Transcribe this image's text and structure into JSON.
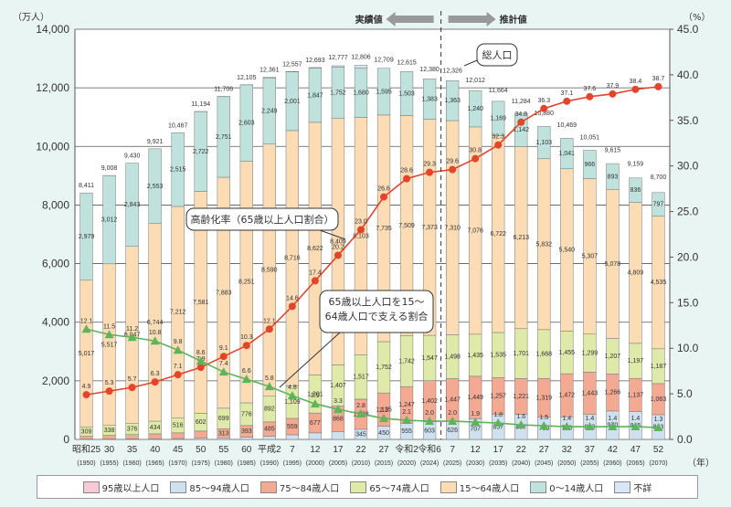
{
  "chart_data": {
    "type": "bar",
    "stacked": true,
    "title": "",
    "ylabel_left": "（万人）",
    "ylabel_right": "（%）",
    "xlabel_unit": "（年）",
    "ylim_left": [
      0,
      14000
    ],
    "yticks_left": [
      "0",
      "2,000",
      "4,000",
      "6,000",
      "8,000",
      "10,000",
      "12,000",
      "14,000"
    ],
    "ylim_right": [
      0,
      45
    ],
    "yticks_right": [
      "0.0",
      "5.0",
      "10.0",
      "15.0",
      "20.0",
      "25.0",
      "30.0",
      "35.0",
      "40.0",
      "45.0"
    ],
    "grid": true,
    "legend_position": "bottom",
    "section_labels": {
      "actual": "実績値",
      "projected": "推計値"
    },
    "callouts": {
      "total": "総人口",
      "aging_rate": "高齢化率（65歳以上人口割合）",
      "support_ratio_line1": "65歳以上人口を15～",
      "support_ratio_line2": "64歳人口で支える割合"
    },
    "categories_era": [
      "昭和25",
      "30",
      "35",
      "40",
      "45",
      "50",
      "55",
      "60",
      "平成2",
      "7",
      "12",
      "17",
      "22",
      "27",
      "令和2",
      "令和6",
      "7",
      "12",
      "17",
      "22",
      "27",
      "32",
      "37",
      "42",
      "47",
      "52"
    ],
    "categories_year": [
      "(1950)",
      "(1955)",
      "(1960)",
      "(1965)",
      "(1970)",
      "(1975)",
      "(1980)",
      "(1985)",
      "(1990)",
      "(1995)",
      "(2000)",
      "(2005)",
      "(2010)",
      "(2015)",
      "(2020)",
      "(2024)",
      "(2025)",
      "(2030)",
      "(2035)",
      "(2040)",
      "(2045)",
      "(2050)",
      "(2055)",
      "(2060)",
      "(2065)",
      "(2070)"
    ],
    "projection_start_index": 16,
    "series": [
      {
        "name": "95歳以上人口",
        "key": "p95",
        "color": "#f6cbd6",
        "values": [
          0,
          0,
          0,
          0,
          0,
          0,
          0,
          0,
          0,
          0,
          0,
          0,
          0,
          0,
          0,
          0,
          0,
          0,
          0,
          0,
          0,
          0,
          0,
          0,
          0,
          0
        ]
      },
      {
        "name": "85～94歳人口",
        "key": "p85",
        "color": "#cfe0ef",
        "values": [
          10,
          13,
          19,
          25,
          30,
          39,
          53,
          79,
          112,
          158,
          223,
          269,
          345,
          450,
          555,
          603,
          626,
          707,
          857,
          857,
          760,
          770,
          853,
          970,
          945,
          843
        ]
      },
      {
        "name": "75～84歳人口",
        "key": "p75",
        "color": "#f4a992",
        "values": [
          97,
          125,
          145,
          164,
          194,
          245,
          313,
          393,
          485,
          559,
          677,
          868,
          1028,
          1135,
          1247,
          1402,
          1447,
          1449,
          1257,
          1221,
          1319,
          1472,
          1443,
          1266,
          1137,
          1063
        ]
      },
      {
        "name": "65～74歳人口",
        "key": "p65",
        "color": "#dfe9a8",
        "values": [
          309,
          338,
          376,
          434,
          516,
          602,
          699,
          776,
          892,
          1109,
          1301,
          1407,
          1517,
          1752,
          1742,
          1547,
          1498,
          1435,
          1535,
          1701,
          1668,
          1455,
          1299,
          1207,
          1197,
          1187
        ]
      },
      {
        "name": "15～64歳人口",
        "key": "p15",
        "color": "#fbdcb4",
        "values": [
          5017,
          5517,
          6047,
          6744,
          7212,
          7581,
          7883,
          8251,
          8590,
          8716,
          8622,
          8409,
          8103,
          7735,
          7509,
          7373,
          7310,
          7076,
          6722,
          6213,
          5832,
          5540,
          5307,
          5078,
          4809,
          4535
        ]
      },
      {
        "name": "0～14歳人口",
        "key": "p0",
        "color": "#bfe2dc",
        "values": [
          2979,
          3012,
          2843,
          2553,
          2515,
          2722,
          2751,
          2603,
          2249,
          2001,
          1847,
          1752,
          1680,
          1595,
          1503,
          1383,
          1363,
          1240,
          1169,
          1142,
          1103,
          1041,
          966,
          893,
          836,
          797
        ]
      },
      {
        "name": "不詳",
        "key": "unk",
        "color": "#d9e6f5",
        "values": [
          0,
          2,
          0,
          0,
          0,
          5,
          7,
          4,
          33,
          13,
          23,
          48,
          98,
          0,
          0,
          0,
          0,
          0,
          0,
          0,
          0,
          0,
          0,
          0,
          0,
          0
        ]
      }
    ],
    "total_labels": [
      "8,411",
      "9,008",
      "9,430",
      "9,921",
      "10,467",
      "11,194",
      "11,706",
      "12,105",
      "12,361",
      "12,557",
      "12,693",
      "12,777",
      "12,806",
      "12,709",
      "12,615",
      "12,380",
      "12,326",
      "12,012",
      "11,664",
      "11,284",
      "10,880",
      "10,469",
      "10,051",
      "9,615",
      "9,159",
      "8,700"
    ],
    "totals": [
      8411,
      9008,
      9430,
      9921,
      10467,
      11194,
      11706,
      12105,
      12361,
      12557,
      12693,
      12777,
      12806,
      12709,
      12615,
      12380,
      12326,
      12012,
      11664,
      11284,
      10880,
      10469,
      10051,
      9615,
      9159,
      8700
    ],
    "aging_rate": {
      "name": "高齢化率（65歳以上人口割合）",
      "color": "#e2452c",
      "values": [
        4.9,
        5.3,
        5.7,
        6.3,
        7.1,
        7.9,
        9.1,
        10.3,
        12.1,
        14.6,
        17.4,
        20.2,
        23.0,
        26.6,
        28.6,
        29.3,
        29.6,
        30.8,
        32.3,
        34.8,
        36.3,
        37.1,
        37.6,
        37.9,
        38.4,
        38.7
      ]
    },
    "support_ratio": {
      "name": "65歳以上人口を15～64歳人口で支える割合",
      "color": "#5fb35a",
      "values": [
        12.1,
        11.5,
        11.2,
        10.8,
        9.8,
        8.6,
        7.4,
        6.6,
        5.8,
        4.8,
        3.9,
        3.3,
        2.8,
        2.3,
        2.1,
        2.0,
        2.0,
        1.9,
        1.8,
        1.6,
        1.5,
        1.4,
        1.4,
        1.4,
        1.4,
        1.3
      ]
    }
  },
  "legend": [
    {
      "label": "95歳以上人口",
      "color": "#f6cbd6"
    },
    {
      "label": "85～94歳人口",
      "color": "#cfe0ef"
    },
    {
      "label": "75～84歳人口",
      "color": "#f4a992"
    },
    {
      "label": "65～74歳人口",
      "color": "#dfe9a8"
    },
    {
      "label": "15～64歳人口",
      "color": "#fbdcb4"
    },
    {
      "label": "0～14歳人口",
      "color": "#bfe2dc"
    },
    {
      "label": "不詳",
      "color": "#d9e6f5"
    }
  ]
}
